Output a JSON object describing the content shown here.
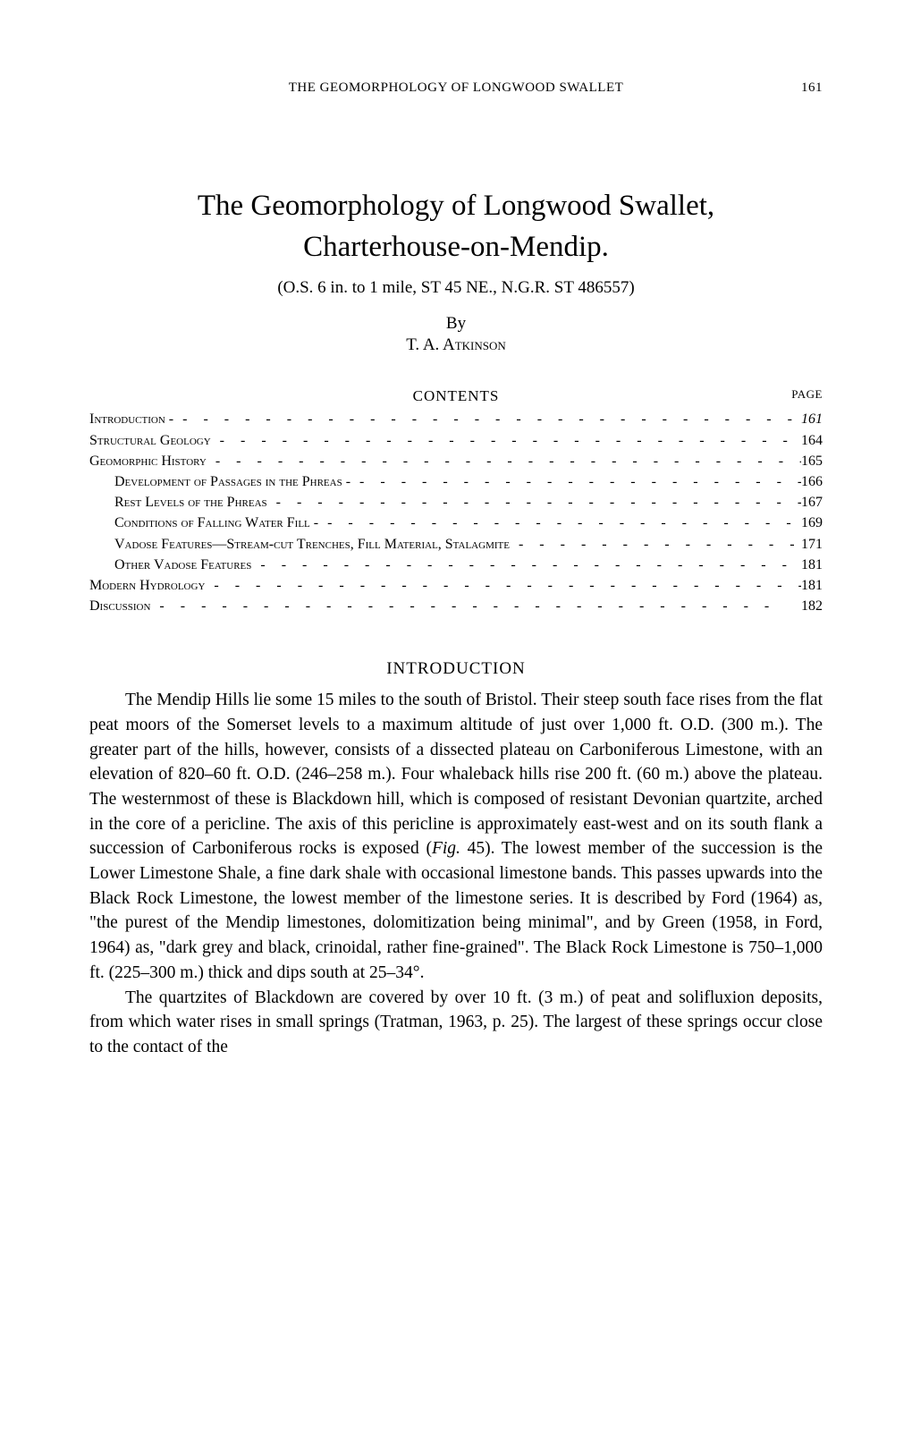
{
  "runningHead": {
    "text": "THE GEOMORPHOLOGY OF LONGWOOD SWALLET",
    "pageNum": "161"
  },
  "title": {
    "line1": "The Geomorphology of Longwood Swallet,",
    "line2": "Charterhouse-on-Mendip."
  },
  "subtitle": "(O.S. 6 in. to 1 mile, ST 45 NE., N.G.R. ST 486557)",
  "by": "By",
  "author": "T. A. Atkinson",
  "contentsHead": "CONTENTS",
  "pageLabel": "PAGE",
  "contents": [
    {
      "label": "Introduction -",
      "page": "161",
      "indent": false,
      "italic": true
    },
    {
      "label": "Structural Geology",
      "page": "164",
      "indent": false,
      "italic": false
    },
    {
      "label": "Geomorphic History",
      "page": "165",
      "indent": false,
      "italic": false
    },
    {
      "label": "Development of Passages in the Phreas -",
      "page": "166",
      "indent": true,
      "italic": false
    },
    {
      "label": "Rest Levels of the Phreas",
      "page": "167",
      "indent": true,
      "italic": false
    },
    {
      "label": "Conditions of Falling Water Fill -",
      "page": "169",
      "indent": true,
      "italic": false
    },
    {
      "label": "Vadose Features—Stream-cut Trenches, Fill Material, Stalagmite",
      "page": "171",
      "indent": true,
      "italic": false
    },
    {
      "label": "Other Vadose Features",
      "page": "181",
      "indent": true,
      "italic": false
    },
    {
      "label": "Modern Hydrology",
      "page": "181",
      "indent": false,
      "italic": false
    },
    {
      "label": "Discussion",
      "page": "182",
      "indent": false,
      "italic": false
    }
  ],
  "sectionHead": "INTRODUCTION",
  "paragraphs": [
    "The Mendip Hills lie some 15 miles to the south of Bristol. Their steep south face rises from the flat peat moors of the Somerset levels to a maximum altitude of just over 1,000 ft. O.D. (300 m.). The greater part of the hills, however, consists of a dissected plateau on Carboniferous Limestone, with an elevation of 820–60 ft. O.D. (246–258 m.). Four whaleback hills rise 200 ft. (60 m.) above the plateau. The westernmost of these is Blackdown hill, which is composed of resistant Devonian quartzite, arched in the core of a pericline. The axis of this pericline is approximately east-west and on its south flank a succession of Carboniferous rocks is exposed (<i>Fig.</i> 45). The lowest member of the succession is the Lower Limestone Shale, a fine dark shale with occasional limestone bands. This passes upwards into the Black Rock Limestone, the lowest member of the limestone series. It is described by Ford (1964) as, \"the purest of the Mendip limestones, dolomitization being minimal\", and by Green (1958, in Ford, 1964) as, \"dark grey and black, crinoidal, rather fine-grained\". The Black Rock Limestone is 750–1,000 ft. (225–300 m.) thick and dips south at 25–34°.",
    "The quartzites of Blackdown are covered by over 10 ft. (3 m.) of peat and solifluxion deposits, from which water rises in small springs (Tratman, 1963, p. 25). The largest of these springs occur close to the contact of the"
  ]
}
